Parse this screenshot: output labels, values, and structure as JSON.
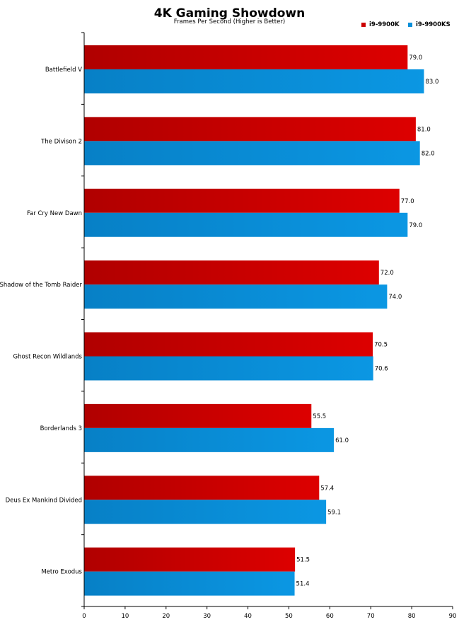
{
  "chart_data": {
    "type": "bar",
    "orientation": "horizontal",
    "title": "4K Gaming Showdown",
    "subtitle": "Frames Per Second (Higher is Better)",
    "categories": [
      "Battlefield V",
      "The Divison 2",
      "Far Cry New Dawn",
      "Shadow of the Tomb Raider",
      "Ghost Recon Wildlands",
      "Borderlands 3",
      "Deus Ex Mankind Divided",
      "Metro Exodus"
    ],
    "series": [
      {
        "name": "i9-9900K",
        "color": "#cc0000",
        "values": [
          79.0,
          81.0,
          77.0,
          72.0,
          70.5,
          55.5,
          57.4,
          51.5
        ],
        "labels": [
          "79.0",
          "81.0",
          "77.0",
          "72.0",
          "70.5",
          "55.5",
          "57.4",
          "51.5"
        ]
      },
      {
        "name": "i9-9900KS",
        "color": "#0b8fd9",
        "values": [
          83.0,
          82.0,
          79.0,
          74.0,
          70.6,
          61.0,
          59.1,
          51.4
        ],
        "labels": [
          "83.0",
          "82.0",
          "79.0",
          "74.0",
          "70.6",
          "61.0",
          "59.1",
          "51.4"
        ]
      }
    ],
    "xlim": [
      0,
      90
    ],
    "xticks": [
      0,
      10,
      20,
      30,
      40,
      50,
      60,
      70,
      80,
      90
    ],
    "xlabel": "",
    "ylabel": "",
    "grid": false,
    "legend_position": "top-right"
  }
}
